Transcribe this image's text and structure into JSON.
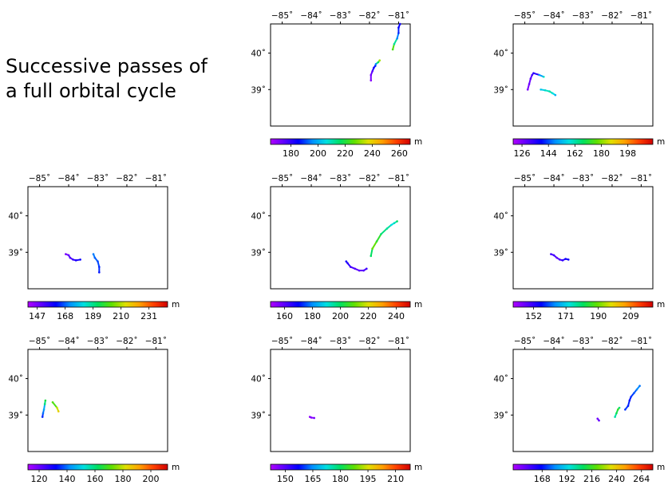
{
  "title_lines": [
    "Successive passes of",
    "a full orbital cycle"
  ],
  "map": {
    "lon_ticks": [
      -85,
      -84,
      -83,
      -82,
      -81
    ],
    "lon_tick_labels": [
      "−85˚",
      "−84˚",
      "−83˚",
      "−82˚",
      "−81˚"
    ],
    "lat_ticks": [
      40,
      39
    ],
    "lat_tick_labels": [
      "40˚",
      "39˚"
    ],
    "colorbar_unit": "m"
  },
  "colors": {
    "scale": [
      "#b000ff",
      "#5a00ff",
      "#0000ff",
      "#0090ff",
      "#00e0e0",
      "#00e060",
      "#60e000",
      "#e0e000",
      "#ffa000",
      "#ff4000",
      "#d00000"
    ]
  },
  "chart_data": [
    {
      "type": "scatter",
      "colorbar_ticks": [
        180,
        200,
        220,
        240,
        260
      ],
      "colorbar_labels": [
        "180",
        "200",
        "220",
        "240",
        "260"
      ],
      "colorbar_range": [
        165,
        268
      ],
      "tracks": [
        {
          "lon": [
            -81.65,
            -81.7,
            -81.78,
            -81.8,
            -81.85,
            -81.9,
            -81.95,
            -81.95
          ],
          "lat": [
            39.8,
            39.75,
            39.7,
            39.65,
            39.6,
            39.5,
            39.4,
            39.25
          ],
          "value": [
            232,
            215,
            196,
            188,
            183,
            175,
            172,
            170
          ]
        },
        {
          "lon": [
            -81.2,
            -81.15,
            -81.05,
            -81.0,
            -81.0,
            -80.95
          ],
          "lat": [
            40.1,
            40.25,
            40.4,
            40.55,
            40.7,
            40.8
          ],
          "value": [
            225,
            212,
            195,
            188,
            185,
            184
          ]
        }
      ]
    },
    {
      "type": "scatter",
      "colorbar_ticks": [
        126,
        144,
        162,
        180,
        198
      ],
      "colorbar_labels": [
        "126",
        "144",
        "162",
        "180",
        "198"
      ],
      "colorbar_range": [
        120,
        215
      ],
      "tracks": [
        {
          "lon": [
            -84.9,
            -84.85,
            -84.8,
            -84.75,
            -84.7,
            -84.5,
            -84.35
          ],
          "lat": [
            39.0,
            39.15,
            39.3,
            39.4,
            39.45,
            39.4,
            39.35
          ],
          "value": [
            126,
            128,
            130,
            132,
            135,
            150,
            160
          ]
        },
        {
          "lon": [
            -84.45,
            -84.3,
            -84.15,
            -84.05,
            -83.95
          ],
          "lat": [
            39.0,
            38.98,
            38.95,
            38.9,
            38.85
          ],
          "value": [
            155,
            160,
            162,
            158,
            152
          ]
        }
      ]
    },
    {
      "type": "scatter",
      "colorbar_ticks": [
        147,
        168,
        189,
        210,
        231
      ],
      "colorbar_labels": [
        "147",
        "168",
        "189",
        "210",
        "231"
      ],
      "colorbar_range": [
        140,
        245
      ],
      "tracks": [
        {
          "lon": [
            -84.1,
            -84.0,
            -83.95,
            -83.85,
            -83.75,
            -83.6
          ],
          "lat": [
            38.95,
            38.92,
            38.85,
            38.8,
            38.78,
            38.8
          ],
          "value": [
            147,
            150,
            152,
            155,
            158,
            160
          ]
        },
        {
          "lon": [
            -83.15,
            -83.1,
            -83.0,
            -82.95,
            -82.95
          ],
          "lat": [
            38.95,
            38.85,
            38.75,
            38.6,
            38.45
          ],
          "value": [
            170,
            168,
            166,
            164,
            162
          ]
        }
      ]
    },
    {
      "type": "scatter",
      "colorbar_ticks": [
        160,
        180,
        200,
        220,
        240
      ],
      "colorbar_labels": [
        "160",
        "180",
        "200",
        "220",
        "240"
      ],
      "colorbar_range": [
        150,
        250
      ],
      "tracks": [
        {
          "lon": [
            -82.8,
            -82.75,
            -82.65,
            -82.5,
            -82.35,
            -82.2,
            -82.1
          ],
          "lat": [
            38.75,
            38.7,
            38.6,
            38.55,
            38.5,
            38.5,
            38.55
          ],
          "value": [
            168,
            165,
            162,
            160,
            160,
            161,
            163
          ]
        },
        {
          "lon": [
            -81.95,
            -81.9,
            -81.75,
            -81.6,
            -81.4,
            -81.25,
            -81.15,
            -81.05
          ],
          "lat": [
            38.9,
            39.1,
            39.3,
            39.5,
            39.65,
            39.75,
            39.8,
            39.85
          ],
          "value": [
            200,
            210,
            205,
            198,
            195,
            190,
            193,
            200
          ]
        }
      ]
    },
    {
      "type": "scatter",
      "colorbar_ticks": [
        152,
        171,
        190,
        209
      ],
      "colorbar_labels": [
        "152",
        "171",
        "190",
        "209"
      ],
      "colorbar_range": [
        140,
        222
      ],
      "tracks": [
        {
          "lon": [
            -84.1,
            -84.0,
            -83.9,
            -83.8,
            -83.7,
            -83.6,
            -83.5
          ],
          "lat": [
            38.95,
            38.92,
            38.85,
            38.8,
            38.78,
            38.82,
            38.8
          ],
          "value": [
            150,
            150,
            148,
            150,
            152,
            155,
            155
          ]
        }
      ]
    },
    {
      "type": "scatter",
      "colorbar_ticks": [
        120,
        140,
        160,
        180,
        200
      ],
      "colorbar_labels": [
        "120",
        "140",
        "160",
        "180",
        "200"
      ],
      "colorbar_range": [
        112,
        212
      ],
      "tracks": [
        {
          "lon": [
            -84.9,
            -84.88,
            -84.85,
            -84.82,
            -84.8
          ],
          "lat": [
            38.95,
            39.05,
            39.15,
            39.3,
            39.4
          ],
          "value": [
            135,
            140,
            145,
            160,
            165
          ]
        },
        {
          "lon": [
            -84.55,
            -84.4,
            -84.35
          ],
          "lat": [
            39.35,
            39.2,
            39.1
          ],
          "value": [
            170,
            180,
            185
          ]
        }
      ]
    },
    {
      "type": "scatter",
      "colorbar_ticks": [
        150,
        165,
        180,
        195,
        210
      ],
      "colorbar_labels": [
        "150",
        "165",
        "180",
        "195",
        "210"
      ],
      "colorbar_range": [
        142,
        218
      ],
      "tracks": [
        {
          "lon": [
            -84.05,
            -84.0,
            -83.9
          ],
          "lat": [
            38.95,
            38.93,
            38.92
          ],
          "value": [
            145,
            146,
            147
          ]
        }
      ]
    },
    {
      "type": "scatter",
      "colorbar_ticks": [
        168,
        192,
        216,
        240,
        264
      ],
      "colorbar_labels": [
        "168",
        "192",
        "216",
        "240",
        "264"
      ],
      "colorbar_range": [
        140,
        275
      ],
      "tracks": [
        {
          "lon": [
            -82.5,
            -82.45
          ],
          "lat": [
            38.9,
            38.85
          ],
          "value": [
            150,
            152
          ]
        },
        {
          "lon": [
            -81.9,
            -81.85,
            -81.8,
            -81.75
          ],
          "lat": [
            38.95,
            39.05,
            39.15,
            39.2
          ],
          "value": [
            200,
            210,
            215,
            205
          ]
        },
        {
          "lon": [
            -81.55,
            -81.45,
            -81.4,
            -81.35,
            -81.25,
            -81.15,
            -81.05
          ],
          "lat": [
            39.15,
            39.25,
            39.4,
            39.5,
            39.6,
            39.7,
            39.8
          ],
          "value": [
            172,
            170,
            168,
            172,
            175,
            180,
            178
          ]
        }
      ]
    }
  ]
}
